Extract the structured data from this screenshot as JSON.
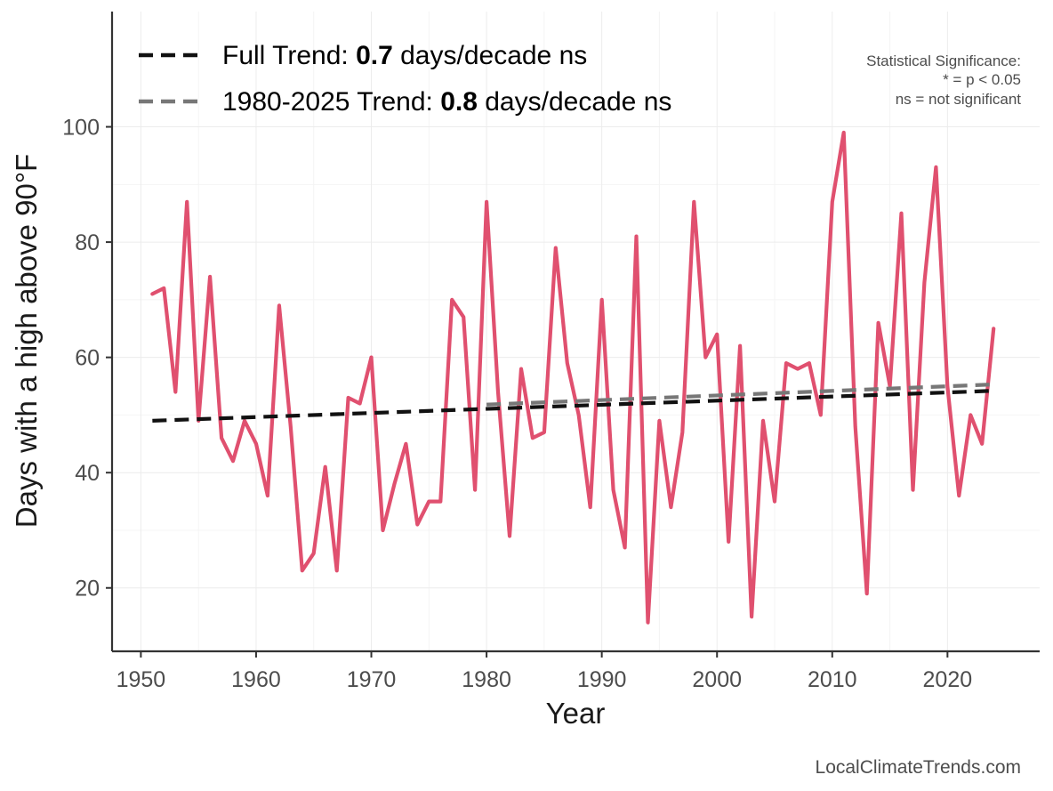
{
  "chart_data": {
    "type": "line",
    "title": "",
    "xlabel": "Year",
    "ylabel": "Days with a high above 90°F",
    "xlim": [
      1947.5,
      2028
    ],
    "ylim": [
      9,
      120
    ],
    "x_ticks": [
      1950,
      1960,
      1970,
      1980,
      1990,
      2000,
      2010,
      2020
    ],
    "y_ticks": [
      20,
      40,
      60,
      80,
      100
    ],
    "grid": true,
    "series": [
      {
        "name": "Days above 90°F",
        "color": "#e0506f",
        "x": [
          1951,
          1952,
          1953,
          1954,
          1955,
          1956,
          1957,
          1958,
          1959,
          1960,
          1961,
          1962,
          1963,
          1964,
          1965,
          1966,
          1967,
          1968,
          1969,
          1970,
          1971,
          1972,
          1973,
          1974,
          1975,
          1976,
          1977,
          1978,
          1979,
          1980,
          1981,
          1982,
          1983,
          1984,
          1985,
          1986,
          1987,
          1988,
          1989,
          1990,
          1991,
          1992,
          1993,
          1994,
          1995,
          1996,
          1997,
          1998,
          1999,
          2000,
          2001,
          2002,
          2003,
          2004,
          2005,
          2006,
          2007,
          2008,
          2009,
          2010,
          2011,
          2012,
          2013,
          2014,
          2015,
          2016,
          2017,
          2018,
          2019,
          2020,
          2021,
          2022,
          2023,
          2024
        ],
        "values": [
          71,
          72,
          54,
          87,
          49,
          74,
          46,
          42,
          49,
          45,
          36,
          69,
          48,
          23,
          26,
          41,
          23,
          53,
          52,
          60,
          30,
          38,
          45,
          31,
          35,
          35,
          70,
          67,
          37,
          87,
          54,
          29,
          58,
          46,
          47,
          79,
          59,
          50,
          34,
          70,
          37,
          27,
          81,
          14,
          49,
          34,
          47,
          87,
          60,
          64,
          28,
          62,
          15,
          49,
          35,
          59,
          58,
          59,
          50,
          87,
          99,
          48,
          19,
          66,
          55,
          85,
          37,
          73,
          93,
          55,
          36,
          50,
          45,
          65
        ]
      }
    ],
    "trends": [
      {
        "name": "Full Trend",
        "style": "dashed",
        "color": "#111111",
        "x": [
          1951,
          2024
        ],
        "values": [
          49.0,
          54.2
        ],
        "label_prefix": "Full Trend: ",
        "label_value": "0.7",
        "label_suffix": " days/decade ns"
      },
      {
        "name": "1980-2025 Trend",
        "style": "dashed",
        "color": "#777777",
        "x": [
          1980,
          2024
        ],
        "values": [
          51.8,
          55.3
        ],
        "label_prefix": "1980-2025 Trend: ",
        "label_value": "0.8",
        "label_suffix": " days/decade ns"
      }
    ],
    "legend_position": "top-left",
    "annotations": {
      "significance_title": "Statistical Significance:",
      "significance_star": "* = p < 0.05",
      "significance_ns": "ns = not significant",
      "source": "LocalClimateTrends.com"
    }
  }
}
